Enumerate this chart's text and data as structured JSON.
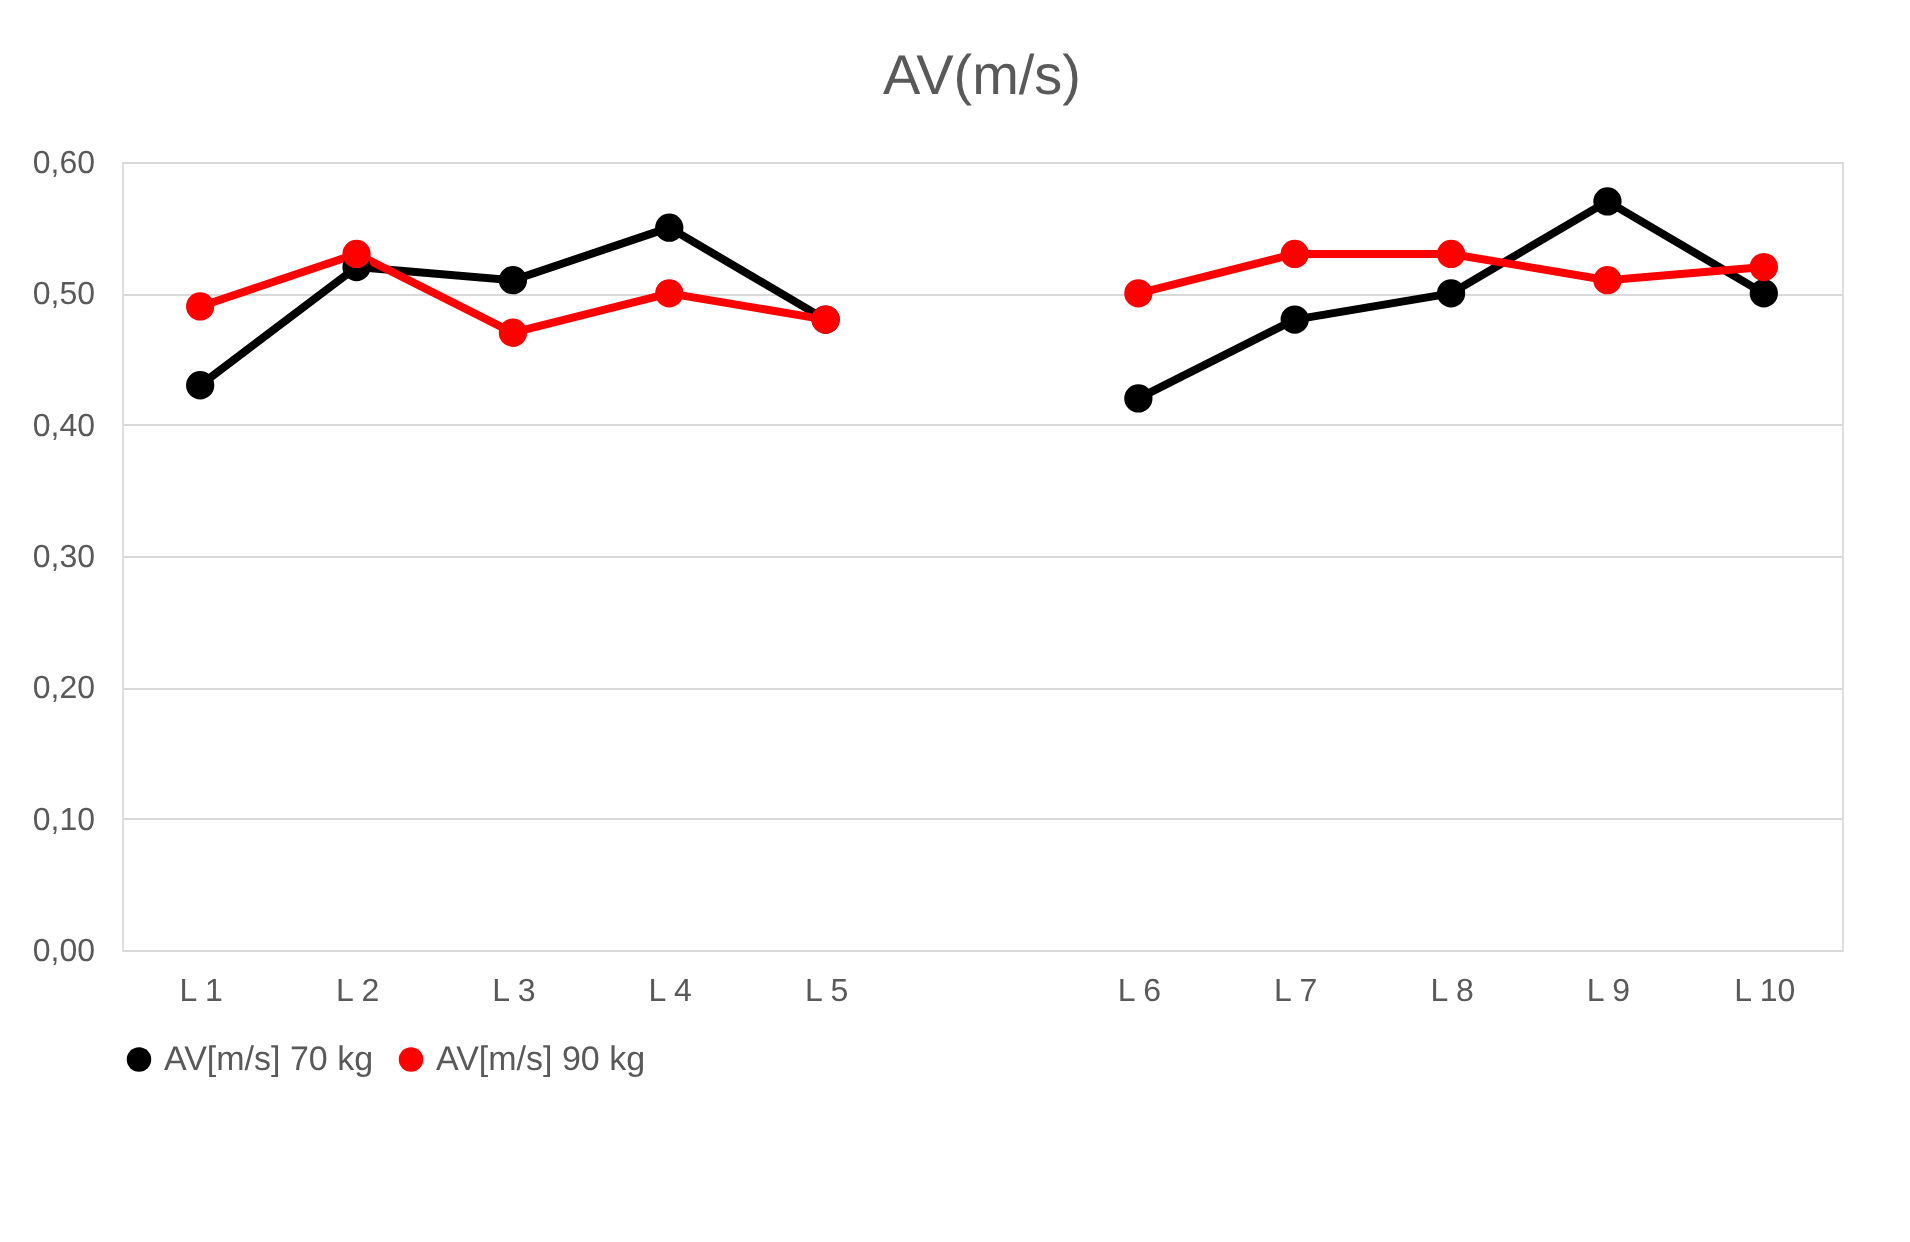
{
  "chart_data": {
    "type": "line",
    "title": "AV(m/s)",
    "categories": [
      "L 1",
      "L 2",
      "L 3",
      "L 4",
      "L 5",
      null,
      "L 6",
      "L 7",
      "L 8",
      "L 9",
      "L 10"
    ],
    "series": [
      {
        "name": "AV[m/s] 70 kg",
        "color": "#000000",
        "values": [
          0.43,
          0.52,
          0.51,
          0.55,
          0.48,
          null,
          0.42,
          0.48,
          0.5,
          0.57,
          0.5
        ]
      },
      {
        "name": "AV[m/s] 90 kg",
        "color": "#ff0000",
        "values": [
          0.49,
          0.53,
          0.47,
          0.5,
          0.48,
          null,
          0.5,
          0.53,
          0.53,
          0.51,
          0.52
        ]
      }
    ],
    "ylim": [
      0,
      0.6
    ],
    "yticks": [
      {
        "value": 0,
        "label": "0,00"
      },
      {
        "value": 0.1,
        "label": "0,10"
      },
      {
        "value": 0.2,
        "label": "0,20"
      },
      {
        "value": 0.3,
        "label": "0,30"
      },
      {
        "value": 0.4,
        "label": "0,40"
      },
      {
        "value": 0.5,
        "label": "0,50"
      },
      {
        "value": 0.6,
        "label": "0,60"
      }
    ],
    "grid": "y",
    "legend": "bottom",
    "marker": "circle",
    "line_style": "solid"
  }
}
